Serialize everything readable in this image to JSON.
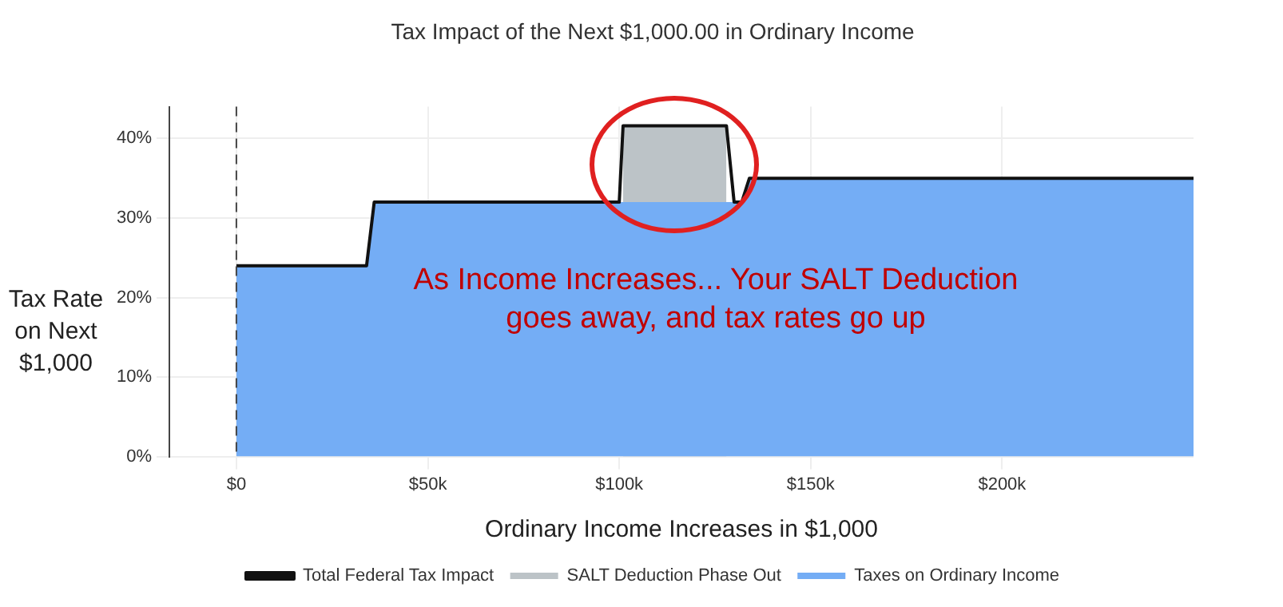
{
  "chart_data": {
    "type": "area",
    "title": "Tax Impact of the Next $1,000.00 in Ordinary Income",
    "xlabel": "Ordinary Income Increases in $1,000",
    "ylabel": "Tax Rate on Next $1,000",
    "x": [
      0,
      34000,
      36000,
      100000,
      101000,
      128000,
      130000,
      132000,
      134000,
      250000
    ],
    "series": [
      {
        "name": "Total Federal Tax Impact",
        "type": "line",
        "color": "#111111",
        "values": [
          24,
          24,
          32,
          32,
          41.6,
          41.6,
          32,
          32,
          35,
          35
        ]
      },
      {
        "name": "SALT Deduction Phase Out",
        "type": "area",
        "color": "#bcc3c7",
        "values": [
          null,
          null,
          null,
          null,
          41.6,
          41.6,
          null,
          null,
          null,
          null
        ]
      },
      {
        "name": "Taxes on Ordinary Income",
        "type": "area",
        "color": "#74adf5",
        "values": [
          24,
          24,
          32,
          32,
          32,
          32,
          32,
          32,
          35,
          35
        ]
      }
    ],
    "xlim": [
      -17500,
      250000
    ],
    "ylim": [
      0,
      44
    ],
    "xticks": [
      {
        "value": 0,
        "label": "$0"
      },
      {
        "value": 50000,
        "label": "$50k"
      },
      {
        "value": 100000,
        "label": "$100k"
      },
      {
        "value": 150000,
        "label": "$150k"
      },
      {
        "value": 200000,
        "label": "$200k"
      }
    ],
    "yticks": [
      {
        "value": 0,
        "label": "0%"
      },
      {
        "value": 10,
        "label": "10%"
      },
      {
        "value": 20,
        "label": "20%"
      },
      {
        "value": 30,
        "label": "30%"
      },
      {
        "value": 40,
        "label": "40%"
      }
    ],
    "ref_lines": [
      {
        "axis": "x",
        "value": 0,
        "color": "#444444",
        "line_style": "dashed"
      }
    ],
    "annotations": [
      "As Income Increases... Your SALT Deduction goes away, and tax rates go up"
    ],
    "grid": true,
    "legend": "bottom",
    "marker": "none"
  }
}
